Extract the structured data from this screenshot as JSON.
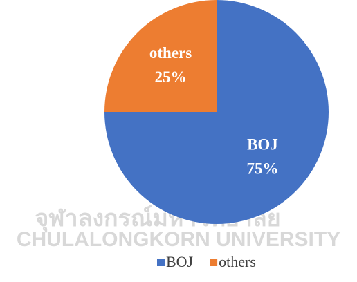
{
  "chart_data": {
    "type": "pie",
    "categories": [
      "BOJ",
      "others"
    ],
    "values": [
      75,
      25
    ],
    "value_labels": [
      "75%",
      "25%"
    ],
    "colors": [
      "#4472c4",
      "#ed7d31"
    ],
    "legend": "bottom"
  },
  "watermark": {
    "thai": "จุฬาลงกรณ์มหาวิทยาลัย",
    "english": "CHULALONGKORN UNIVERSITY"
  }
}
